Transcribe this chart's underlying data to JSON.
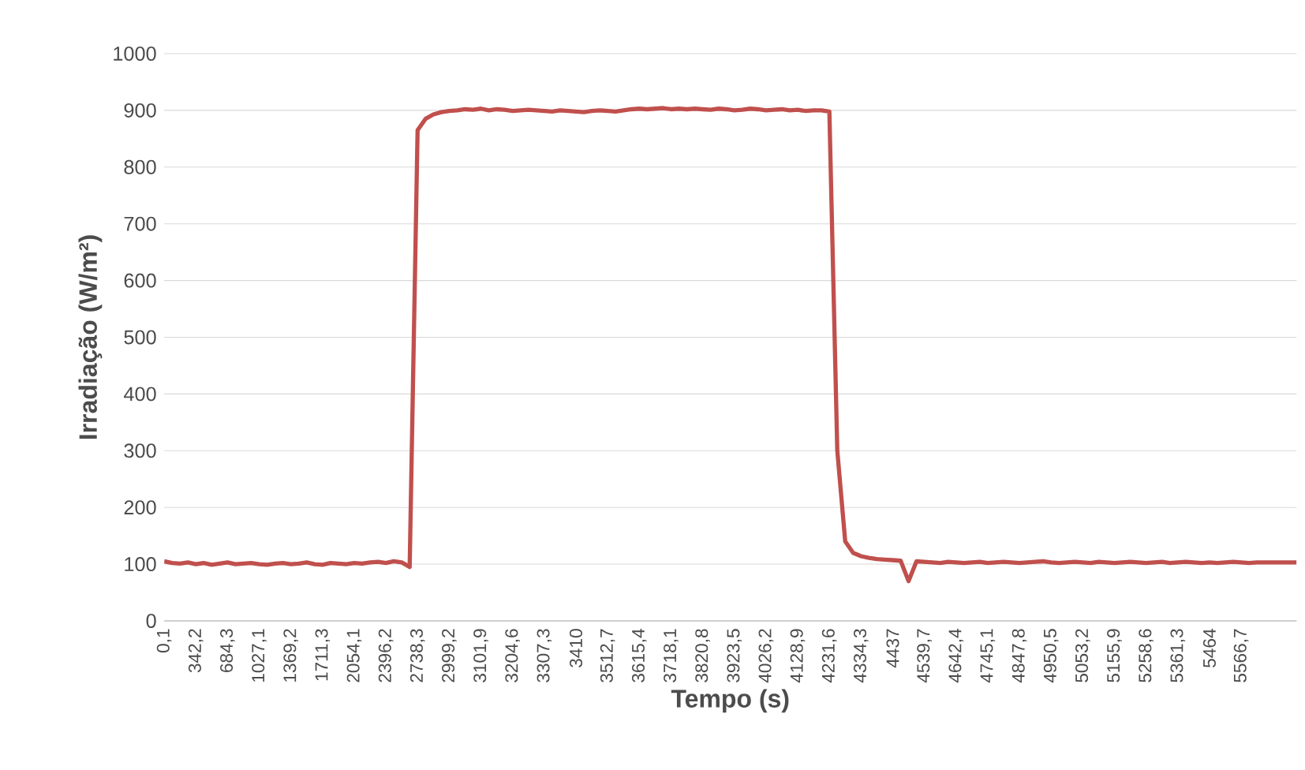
{
  "chart_data": {
    "type": "line",
    "xlabel": "Tempo (s)",
    "ylabel": "Irradiação (W/m²)",
    "categories": [
      "0,1",
      null,
      null,
      null,
      "342,2",
      null,
      null,
      null,
      "684,3",
      null,
      null,
      null,
      "1027,1",
      null,
      null,
      null,
      "1369,2",
      null,
      null,
      null,
      "1711,3",
      null,
      null,
      null,
      "2054,1",
      null,
      null,
      null,
      "2396,2",
      null,
      null,
      null,
      "2738,3",
      null,
      null,
      null,
      "2999,2",
      null,
      null,
      null,
      "3101,9",
      null,
      null,
      null,
      "3204,6",
      null,
      null,
      null,
      "3307,3",
      null,
      null,
      null,
      "3410",
      null,
      null,
      null,
      "3512,7",
      null,
      null,
      null,
      "3615,4",
      null,
      null,
      null,
      "3718,1",
      null,
      null,
      null,
      "3820,8",
      null,
      null,
      null,
      "3923,5",
      null,
      null,
      null,
      "4026,2",
      null,
      null,
      null,
      "4128,9",
      null,
      null,
      null,
      "4231,6",
      null,
      null,
      null,
      "4334,3",
      null,
      null,
      null,
      "4437",
      null,
      null,
      null,
      "4539,7",
      null,
      null,
      null,
      "4642,4",
      null,
      null,
      null,
      "4745,1",
      null,
      null,
      null,
      "4847,8",
      null,
      null,
      null,
      "4950,5",
      null,
      null,
      null,
      "5053,2",
      null,
      null,
      null,
      "5155,9",
      null,
      null,
      null,
      "5258,6",
      null,
      null,
      null,
      "5361,3",
      null,
      null,
      null,
      "5464",
      null,
      null,
      null,
      "5566,7",
      null,
      null,
      null,
      null,
      null,
      null,
      null
    ],
    "series": [
      {
        "color": "#c0504d",
        "values": [
          105,
          102,
          101,
          103,
          100,
          102,
          99,
          101,
          103,
          100,
          101,
          102,
          100,
          99,
          101,
          102,
          100,
          101,
          103,
          100,
          99,
          102,
          101,
          100,
          102,
          101,
          103,
          104,
          102,
          105,
          103,
          95,
          865,
          885,
          893,
          897,
          899,
          900,
          902,
          901,
          903,
          900,
          902,
          901,
          899,
          900,
          901,
          900,
          899,
          898,
          900,
          899,
          898,
          897,
          899,
          900,
          899,
          898,
          900,
          902,
          903,
          902,
          903,
          904,
          902,
          903,
          902,
          903,
          902,
          901,
          903,
          902,
          900,
          901,
          903,
          902,
          900,
          901,
          902,
          900,
          901,
          899,
          900,
          900,
          898,
          300,
          140,
          120,
          114,
          111,
          109,
          108,
          107,
          106,
          70,
          105,
          104,
          103,
          102,
          104,
          103,
          102,
          103,
          104,
          102,
          103,
          104,
          103,
          102,
          103,
          104,
          105,
          103,
          102,
          103,
          104,
          103,
          102,
          104,
          103,
          102,
          103,
          104,
          103,
          102,
          103,
          104,
          102,
          103,
          104,
          103,
          102,
          103,
          102,
          103,
          104,
          103,
          102,
          103,
          103,
          103,
          103,
          103,
          103
        ]
      }
    ],
    "ylim": [
      0,
      1000
    ],
    "yticks": [
      0,
      100,
      200,
      300,
      400,
      500,
      600,
      700,
      800,
      900,
      1000
    ],
    "grid": "y",
    "marker": "none",
    "line_style": "solid"
  }
}
